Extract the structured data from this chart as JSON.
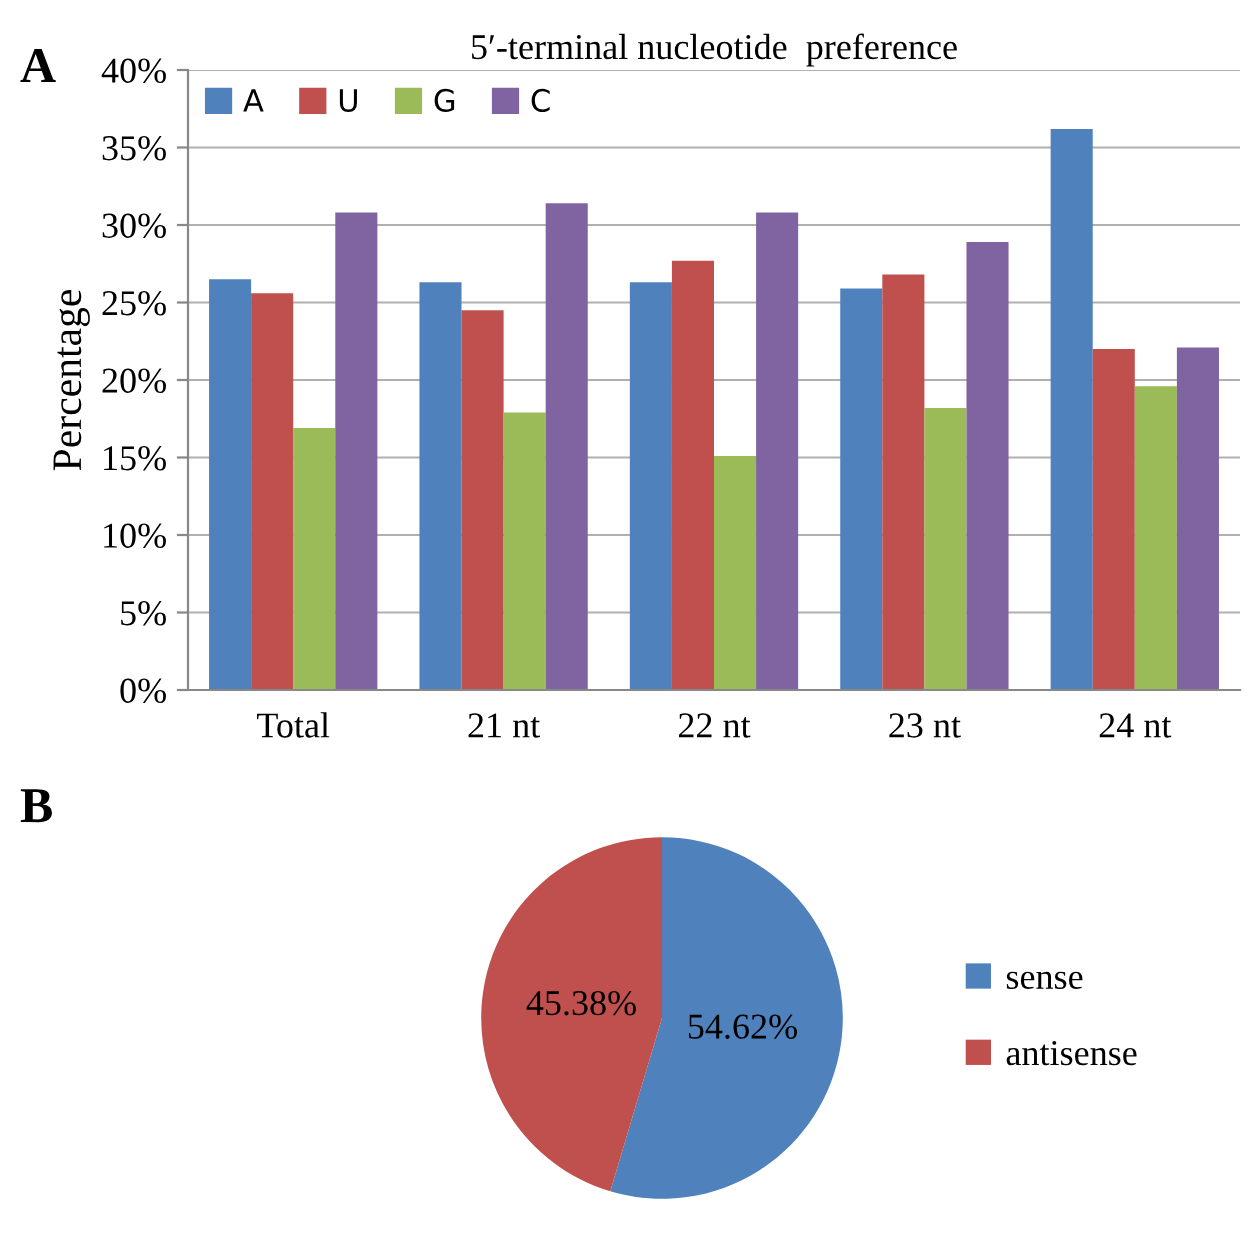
{
  "chart_data": [
    {
      "type": "bar",
      "title": "5′-terminal nucleotide  preference",
      "ylabel": "Percentage",
      "annotations": [
        "A"
      ],
      "categories": [
        "Total",
        "21 nt",
        "22 nt",
        "23 nt",
        "24 nt"
      ],
      "series": [
        {
          "name": "A",
          "color": "#4f81bd",
          "values": [
            26.5,
            26.3,
            26.3,
            25.9,
            36.2
          ]
        },
        {
          "name": "U",
          "color": "#c0504d",
          "values": [
            25.6,
            24.5,
            27.7,
            26.8,
            22.0
          ]
        },
        {
          "name": "G",
          "color": "#9bbb59",
          "values": [
            16.9,
            17.9,
            15.1,
            18.2,
            19.6
          ]
        },
        {
          "name": "C",
          "color": "#8064a2",
          "values": [
            30.8,
            31.4,
            30.8,
            28.9,
            22.1
          ]
        }
      ],
      "ylim": [
        0,
        40
      ],
      "yticks": [
        {
          "value": 0,
          "label": "0%"
        },
        {
          "value": 5,
          "label": "5%"
        },
        {
          "value": 10,
          "label": "10%"
        },
        {
          "value": 15,
          "label": "15%"
        },
        {
          "value": 20,
          "label": "20%"
        },
        {
          "value": 25,
          "label": "25%"
        },
        {
          "value": 30,
          "label": "30%"
        },
        {
          "value": 35,
          "label": "35%"
        },
        {
          "value": 40,
          "label": "40%"
        }
      ],
      "grid": "y",
      "legend": "top left"
    },
    {
      "type": "pie",
      "annotations": [
        "B"
      ],
      "categories": [
        "sense",
        "antisense"
      ],
      "values": [
        54.62,
        45.38
      ],
      "colors": [
        "#4f81bd",
        "#c0504d"
      ],
      "value_labels": [
        "54.62%",
        "45.38%"
      ],
      "legend": "right"
    }
  ]
}
